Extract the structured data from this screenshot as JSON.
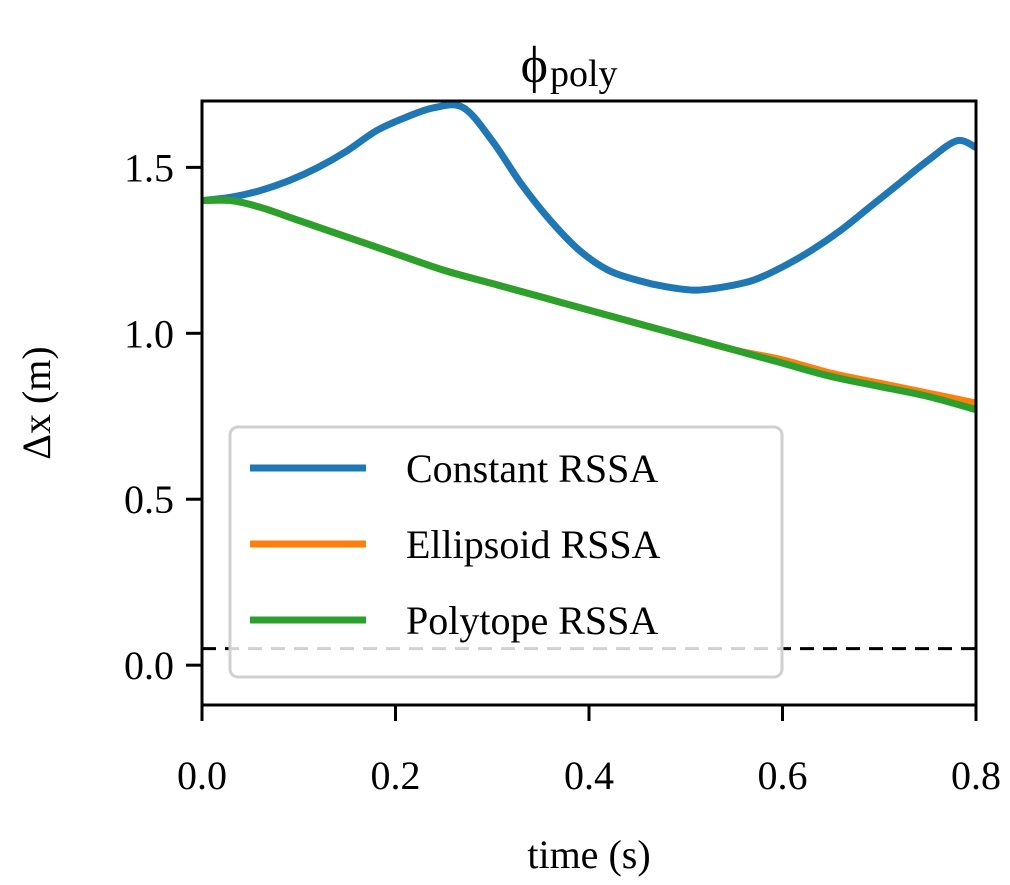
{
  "chart_data": {
    "type": "line",
    "title": "ϕ",
    "title_subscript": "poly",
    "xlabel": "time (s)",
    "ylabel": "Δx (m)",
    "xlim": [
      0.0,
      0.8
    ],
    "ylim": [
      -0.12,
      1.7
    ],
    "x_ticks": [
      "0.0",
      "0.2",
      "0.4",
      "0.6",
      "0.8"
    ],
    "y_ticks": [
      "0.0",
      "0.5",
      "1.0",
      "1.5"
    ],
    "grid": false,
    "legend_position": "lower-left",
    "threshold": {
      "value": 0.05,
      "style": "dashed",
      "color": "#000000"
    },
    "series": [
      {
        "name": "Constant RSSA",
        "color": "#1f77b4",
        "x": [
          0.0,
          0.03,
          0.06,
          0.09,
          0.12,
          0.15,
          0.18,
          0.21,
          0.24,
          0.27,
          0.3,
          0.33,
          0.36,
          0.39,
          0.42,
          0.45,
          0.48,
          0.51,
          0.54,
          0.57,
          0.6,
          0.63,
          0.66,
          0.69,
          0.72,
          0.75,
          0.78,
          0.8
        ],
        "values": [
          1.4,
          1.41,
          1.43,
          1.46,
          1.5,
          1.55,
          1.61,
          1.65,
          1.68,
          1.68,
          1.58,
          1.45,
          1.34,
          1.25,
          1.19,
          1.16,
          1.14,
          1.13,
          1.14,
          1.16,
          1.2,
          1.25,
          1.31,
          1.38,
          1.45,
          1.52,
          1.58,
          1.56
        ]
      },
      {
        "name": "Ellipsoid RSSA",
        "color": "#ff7f0e",
        "x": [
          0.0,
          0.03,
          0.06,
          0.1,
          0.15,
          0.2,
          0.25,
          0.3,
          0.35,
          0.4,
          0.45,
          0.5,
          0.55,
          0.6,
          0.65,
          0.7,
          0.75,
          0.8
        ],
        "values": [
          1.4,
          1.4,
          1.38,
          1.34,
          1.29,
          1.24,
          1.19,
          1.15,
          1.11,
          1.07,
          1.03,
          0.99,
          0.95,
          0.92,
          0.88,
          0.85,
          0.82,
          0.79
        ]
      },
      {
        "name": "Polytope RSSA",
        "color": "#2ca02c",
        "x": [
          0.0,
          0.03,
          0.06,
          0.1,
          0.15,
          0.2,
          0.25,
          0.3,
          0.35,
          0.4,
          0.45,
          0.5,
          0.55,
          0.6,
          0.65,
          0.7,
          0.75,
          0.8
        ],
        "values": [
          1.4,
          1.4,
          1.38,
          1.34,
          1.29,
          1.24,
          1.19,
          1.15,
          1.11,
          1.07,
          1.03,
          0.99,
          0.95,
          0.91,
          0.87,
          0.84,
          0.81,
          0.77
        ]
      }
    ]
  }
}
